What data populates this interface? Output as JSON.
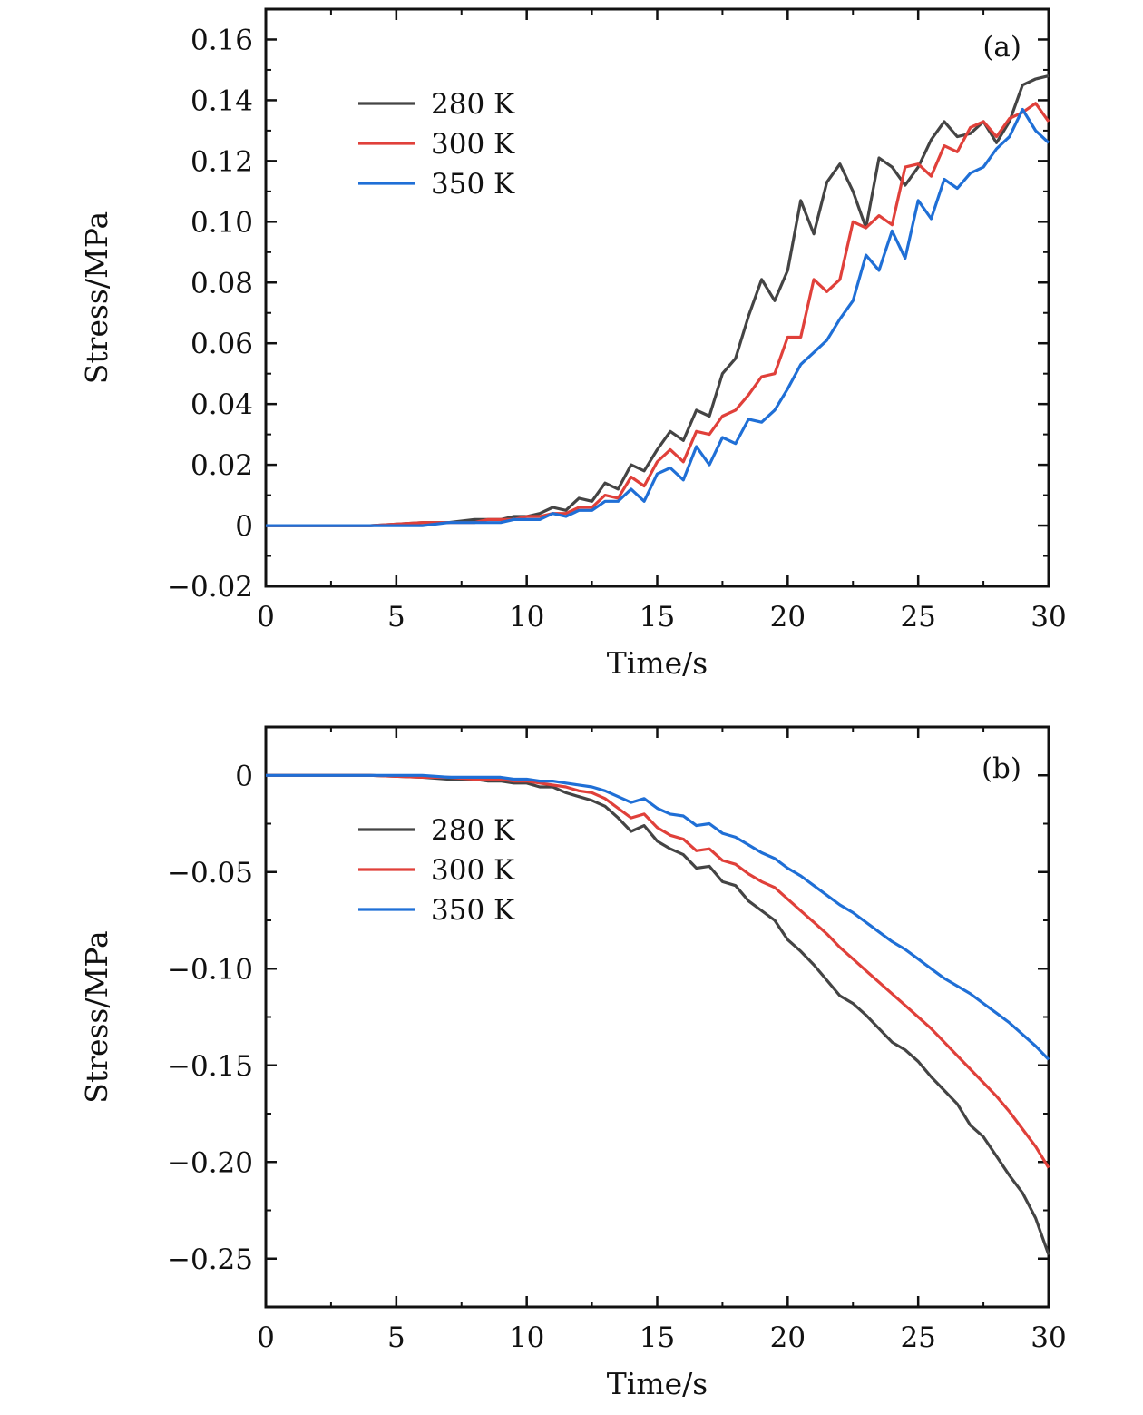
{
  "chart_data": [
    {
      "type": "line",
      "panel_label": "(a)",
      "xlabel": "Time/s",
      "ylabel": "Stress/MPa",
      "xlim": [
        0,
        30
      ],
      "ylim": [
        -0.02,
        0.17
      ],
      "xticks": [
        0,
        5,
        10,
        15,
        20,
        25,
        30
      ],
      "xtick_labels": [
        "0",
        "5",
        "10",
        "15",
        "20",
        "25",
        "30"
      ],
      "yticks": [
        -0.02,
        0,
        0.02,
        0.04,
        0.06,
        0.08,
        0.1,
        0.12,
        0.14,
        0.16
      ],
      "ytick_labels": [
        "−0.02",
        "0",
        "0.02",
        "0.04",
        "0.06",
        "0.08",
        "0.10",
        "0.12",
        "0.14",
        "0.16"
      ],
      "legend_position": "upper-left",
      "grid": false,
      "series": [
        {
          "name": "280 K",
          "color": "#444444",
          "x": [
            0,
            2,
            4,
            6,
            7,
            8,
            8.5,
            9,
            9.5,
            10,
            10.5,
            11,
            11.5,
            12,
            12.5,
            13,
            13.5,
            14,
            14.5,
            15,
            15.5,
            16,
            16.5,
            17,
            17.5,
            18,
            18.5,
            19,
            19.5,
            20,
            20.5,
            21,
            21.5,
            22,
            22.5,
            23,
            23.5,
            24,
            24.5,
            25,
            25.5,
            26,
            26.5,
            27,
            27.5,
            28,
            28.5,
            29,
            29.5,
            30
          ],
          "y": [
            0,
            0,
            0,
            0.001,
            0.001,
            0.002,
            0.002,
            0.002,
            0.003,
            0.003,
            0.004,
            0.006,
            0.005,
            0.009,
            0.008,
            0.014,
            0.012,
            0.02,
            0.018,
            0.025,
            0.031,
            0.028,
            0.038,
            0.036,
            0.05,
            0.055,
            0.069,
            0.081,
            0.074,
            0.084,
            0.107,
            0.096,
            0.113,
            0.119,
            0.11,
            0.098,
            0.121,
            0.118,
            0.112,
            0.118,
            0.127,
            0.133,
            0.128,
            0.129,
            0.133,
            0.126,
            0.133,
            0.145,
            0.147,
            0.148
          ]
        },
        {
          "name": "300 K",
          "color": "#e0403a",
          "x": [
            0,
            2,
            4,
            6,
            7,
            8,
            8.5,
            9,
            9.5,
            10,
            10.5,
            11,
            11.5,
            12,
            12.5,
            13,
            13.5,
            14,
            14.5,
            15,
            15.5,
            16,
            16.5,
            17,
            17.5,
            18,
            18.5,
            19,
            19.5,
            20,
            20.5,
            21,
            21.5,
            22,
            22.5,
            23,
            23.5,
            24,
            24.5,
            25,
            25.5,
            26,
            26.5,
            27,
            27.5,
            28,
            28.5,
            29,
            29.5,
            30
          ],
          "y": [
            0,
            0,
            0,
            0.001,
            0.001,
            0.001,
            0.002,
            0.002,
            0.002,
            0.003,
            0.003,
            0.004,
            0.004,
            0.006,
            0.006,
            0.01,
            0.009,
            0.016,
            0.013,
            0.021,
            0.025,
            0.021,
            0.031,
            0.03,
            0.036,
            0.038,
            0.043,
            0.049,
            0.05,
            0.062,
            0.062,
            0.081,
            0.077,
            0.081,
            0.1,
            0.098,
            0.102,
            0.099,
            0.118,
            0.119,
            0.115,
            0.125,
            0.123,
            0.131,
            0.133,
            0.128,
            0.134,
            0.136,
            0.139,
            0.133
          ]
        },
        {
          "name": "350 K",
          "color": "#1f6fd6",
          "x": [
            0,
            2,
            4,
            6,
            7,
            8,
            8.5,
            9,
            9.5,
            10,
            10.5,
            11,
            11.5,
            12,
            12.5,
            13,
            13.5,
            14,
            14.5,
            15,
            15.5,
            16,
            16.5,
            17,
            17.5,
            18,
            18.5,
            19,
            19.5,
            20,
            20.5,
            21,
            21.5,
            22,
            22.5,
            23,
            23.5,
            24,
            24.5,
            25,
            25.5,
            26,
            26.5,
            27,
            27.5,
            28,
            28.5,
            29,
            29.5,
            30
          ],
          "y": [
            0,
            0,
            0,
            0,
            0.001,
            0.001,
            0.001,
            0.001,
            0.002,
            0.002,
            0.002,
            0.004,
            0.003,
            0.005,
            0.005,
            0.008,
            0.008,
            0.012,
            0.008,
            0.017,
            0.019,
            0.015,
            0.026,
            0.02,
            0.029,
            0.027,
            0.035,
            0.034,
            0.038,
            0.045,
            0.053,
            0.057,
            0.061,
            0.068,
            0.074,
            0.089,
            0.084,
            0.097,
            0.088,
            0.107,
            0.101,
            0.114,
            0.111,
            0.116,
            0.118,
            0.124,
            0.128,
            0.137,
            0.13,
            0.126
          ]
        }
      ]
    },
    {
      "type": "line",
      "panel_label": "(b)",
      "xlabel": "Time/s",
      "ylabel": "Stress/MPa",
      "xlim": [
        0,
        30
      ],
      "ylim": [
        -0.275,
        0.025
      ],
      "xticks": [
        0,
        5,
        10,
        15,
        20,
        25,
        30
      ],
      "xtick_labels": [
        "0",
        "5",
        "10",
        "15",
        "20",
        "25",
        "30"
      ],
      "yticks": [
        0,
        -0.05,
        -0.1,
        -0.15,
        -0.2,
        -0.25
      ],
      "ytick_labels": [
        "0",
        "−0.05",
        "−0.10",
        "−0.15",
        "−0.20",
        "−0.25"
      ],
      "legend_position": "upper-left",
      "grid": false,
      "series": [
        {
          "name": "280 K",
          "color": "#444444",
          "x": [
            0,
            2,
            4,
            6,
            7,
            8,
            8.5,
            9,
            9.5,
            10,
            10.5,
            11,
            11.5,
            12,
            12.5,
            13,
            13.5,
            14,
            14.5,
            15,
            15.5,
            16,
            16.5,
            17,
            17.5,
            18,
            18.5,
            19,
            19.5,
            20,
            20.5,
            21,
            21.5,
            22,
            22.5,
            23,
            23.5,
            24,
            24.5,
            25,
            25.5,
            26,
            26.5,
            27,
            27.5,
            28,
            28.5,
            29,
            29.5,
            30
          ],
          "y": [
            0,
            0,
            0,
            -0.001,
            -0.002,
            -0.002,
            -0.003,
            -0.003,
            -0.004,
            -0.004,
            -0.006,
            -0.006,
            -0.009,
            -0.011,
            -0.013,
            -0.016,
            -0.022,
            -0.029,
            -0.026,
            -0.034,
            -0.038,
            -0.041,
            -0.048,
            -0.047,
            -0.055,
            -0.057,
            -0.065,
            -0.07,
            -0.075,
            -0.085,
            -0.091,
            -0.098,
            -0.106,
            -0.114,
            -0.118,
            -0.124,
            -0.131,
            -0.138,
            -0.142,
            -0.148,
            -0.156,
            -0.163,
            -0.17,
            -0.181,
            -0.187,
            -0.197,
            -0.207,
            -0.216,
            -0.229,
            -0.248
          ]
        },
        {
          "name": "300 K",
          "color": "#e0403a",
          "x": [
            0,
            2,
            4,
            6,
            7,
            8,
            8.5,
            9,
            9.5,
            10,
            10.5,
            11,
            11.5,
            12,
            12.5,
            13,
            13.5,
            14,
            14.5,
            15,
            15.5,
            16,
            16.5,
            17,
            17.5,
            18,
            18.5,
            19,
            19.5,
            20,
            20.5,
            21,
            21.5,
            22,
            22.5,
            23,
            23.5,
            24,
            24.5,
            25,
            25.5,
            26,
            26.5,
            27,
            27.5,
            28,
            28.5,
            29,
            29.5,
            30
          ],
          "y": [
            0,
            0,
            0,
            -0.001,
            -0.001,
            -0.002,
            -0.002,
            -0.002,
            -0.003,
            -0.003,
            -0.004,
            -0.005,
            -0.006,
            -0.008,
            -0.009,
            -0.012,
            -0.017,
            -0.022,
            -0.02,
            -0.027,
            -0.031,
            -0.033,
            -0.039,
            -0.038,
            -0.044,
            -0.046,
            -0.051,
            -0.055,
            -0.058,
            -0.064,
            -0.07,
            -0.076,
            -0.082,
            -0.089,
            -0.095,
            -0.101,
            -0.107,
            -0.113,
            -0.119,
            -0.125,
            -0.131,
            -0.138,
            -0.145,
            -0.152,
            -0.159,
            -0.166,
            -0.174,
            -0.183,
            -0.192,
            -0.203
          ]
        },
        {
          "name": "350 K",
          "color": "#1f6fd6",
          "x": [
            0,
            2,
            4,
            6,
            7,
            8,
            8.5,
            9,
            9.5,
            10,
            10.5,
            11,
            11.5,
            12,
            12.5,
            13,
            13.5,
            14,
            14.5,
            15,
            15.5,
            16,
            16.5,
            17,
            17.5,
            18,
            18.5,
            19,
            19.5,
            20,
            20.5,
            21,
            21.5,
            22,
            22.5,
            23,
            23.5,
            24,
            24.5,
            25,
            25.5,
            26,
            26.5,
            27,
            27.5,
            28,
            28.5,
            29,
            29.5,
            30
          ],
          "y": [
            0,
            0,
            0,
            0,
            -0.001,
            -0.001,
            -0.001,
            -0.001,
            -0.002,
            -0.002,
            -0.003,
            -0.003,
            -0.004,
            -0.005,
            -0.006,
            -0.008,
            -0.011,
            -0.014,
            -0.012,
            -0.017,
            -0.02,
            -0.021,
            -0.026,
            -0.025,
            -0.03,
            -0.032,
            -0.036,
            -0.04,
            -0.043,
            -0.048,
            -0.052,
            -0.057,
            -0.062,
            -0.067,
            -0.071,
            -0.076,
            -0.081,
            -0.086,
            -0.09,
            -0.095,
            -0.1,
            -0.105,
            -0.109,
            -0.113,
            -0.118,
            -0.123,
            -0.128,
            -0.134,
            -0.14,
            -0.147
          ]
        }
      ]
    }
  ]
}
